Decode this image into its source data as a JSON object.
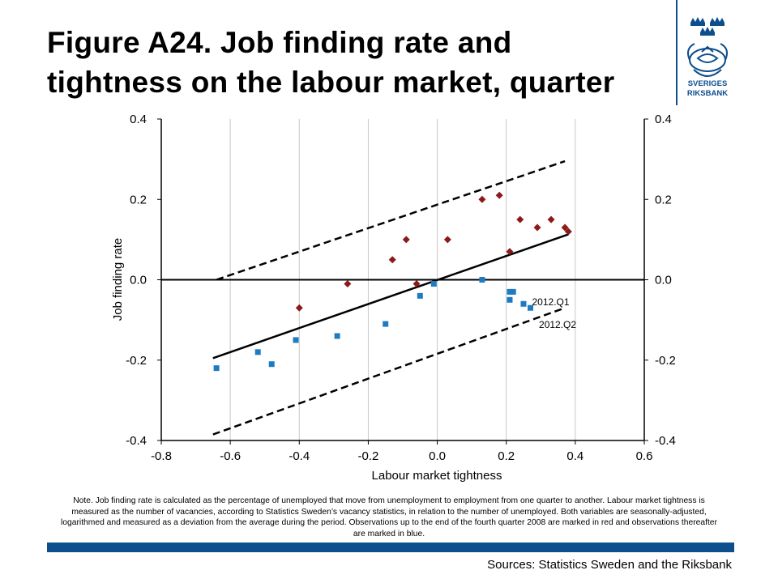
{
  "title": {
    "line1": "Figure A24. Job finding rate and",
    "line2": "tightness on the labour market, quarter"
  },
  "logo": {
    "name": "SVERIGES RIKSBANK",
    "line1": "SVERIGES",
    "line2": "RIKSBANK",
    "color": "#0d4e8c"
  },
  "note": "Note. Job finding rate is calculated as the percentage of unemployed that move from unemployment to employment from one quarter to another. Labour market tightness is measured as the number of vacancies, according to Statistics Sweden’s vacancy statistics, in relation to the number of unemployed. Both variables are seasonally-adjusted, logarithmed and measured as a deviation from the average during the period. Observations up to the end of the fourth quarter 2008 are marked in red and observations thereafter are marked in blue.",
  "sources": "Sources: Statistics Sweden and the Riksbank",
  "chart_data": {
    "type": "scatter",
    "title": "Figure A24. Job finding rate and tightness on the labour market, quarter",
    "xlabel": "Labour market tightness",
    "ylabel": "Job finding rate",
    "xlim": [
      -0.8,
      0.6
    ],
    "ylim": [
      -0.4,
      0.4
    ],
    "x_ticks": [
      "-0.8",
      "-0.6",
      "-0.4",
      "-0.2",
      "0.0",
      "0.2",
      "0.4",
      "0.6"
    ],
    "y_ticks": [
      "-0.4",
      "-0.2",
      "0.0",
      "0.2",
      "0.4"
    ],
    "y_ticks_right": [
      "-0.4",
      "-0.2",
      "0.0",
      "0.2",
      "0.4"
    ],
    "y_tick_values": [
      -0.4,
      -0.2,
      0.0,
      0.2,
      0.4
    ],
    "x_tick_values": [
      -0.8,
      -0.6,
      -0.4,
      -0.2,
      0.0,
      0.2,
      0.4,
      0.6
    ],
    "grid": "vertical",
    "series": [
      {
        "color": "#8b1a1a",
        "marker": "diamond",
        "points": [
          {
            "x": -0.4,
            "y": -0.07
          },
          {
            "x": -0.26,
            "y": -0.01
          },
          {
            "x": -0.13,
            "y": 0.05
          },
          {
            "x": -0.09,
            "y": 0.1
          },
          {
            "x": -0.06,
            "y": -0.01
          },
          {
            "x": 0.03,
            "y": 0.1
          },
          {
            "x": 0.13,
            "y": 0.2
          },
          {
            "x": 0.18,
            "y": 0.21
          },
          {
            "x": 0.21,
            "y": 0.07
          },
          {
            "x": 0.24,
            "y": 0.15
          },
          {
            "x": 0.29,
            "y": 0.13
          },
          {
            "x": 0.33,
            "y": 0.15
          },
          {
            "x": 0.37,
            "y": 0.13
          },
          {
            "x": 0.38,
            "y": 0.12
          }
        ]
      },
      {
        "color": "#1f7bc0",
        "marker": "square",
        "points": [
          {
            "x": -0.64,
            "y": -0.22
          },
          {
            "x": -0.52,
            "y": -0.18
          },
          {
            "x": -0.48,
            "y": -0.21
          },
          {
            "x": -0.41,
            "y": -0.15
          },
          {
            "x": -0.29,
            "y": -0.14
          },
          {
            "x": -0.15,
            "y": -0.11
          },
          {
            "x": -0.05,
            "y": -0.04
          },
          {
            "x": -0.01,
            "y": -0.01
          },
          {
            "x": 0.13,
            "y": 0.0
          },
          {
            "x": 0.21,
            "y": -0.03
          },
          {
            "x": 0.22,
            "y": -0.03
          },
          {
            "x": 0.21,
            "y": -0.05
          },
          {
            "x": 0.25,
            "y": -0.06
          },
          {
            "x": 0.27,
            "y": -0.07
          }
        ]
      }
    ],
    "lines": [
      {
        "style": "solid",
        "points": [
          [
            -0.65,
            -0.195
          ],
          [
            0.38,
            0.113
          ]
        ]
      },
      {
        "style": "dashed",
        "points": [
          [
            -0.64,
            0.0
          ],
          [
            0.37,
            0.295
          ]
        ]
      },
      {
        "style": "dashed",
        "points": [
          [
            -0.65,
            -0.385
          ],
          [
            0.37,
            -0.07
          ]
        ]
      }
    ],
    "annotations": [
      {
        "text": "2012.Q1",
        "x": 0.27,
        "y": -0.053
      },
      {
        "text": "2012.Q2",
        "x": 0.29,
        "y": -0.11
      }
    ]
  }
}
